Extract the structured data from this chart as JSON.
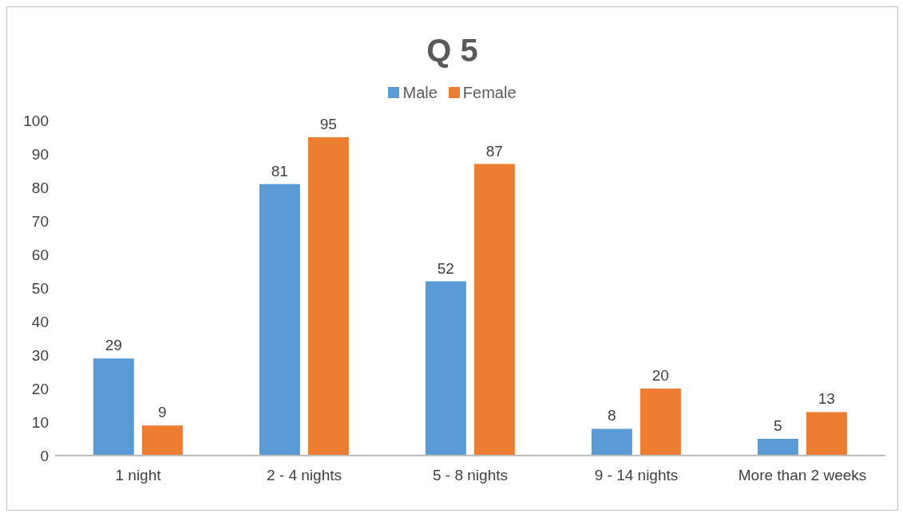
{
  "chart_data": {
    "type": "bar",
    "title": "Q 5",
    "categories": [
      "1 night",
      "2 - 4 nights",
      "5 - 8 nights",
      "9 - 14 nights",
      "More than 2 weeks"
    ],
    "series": [
      {
        "name": "Male",
        "color": "#5b9bd5",
        "values": [
          29,
          81,
          52,
          8,
          5
        ]
      },
      {
        "name": "Female",
        "color": "#ed7d31",
        "values": [
          9,
          95,
          87,
          20,
          13
        ]
      }
    ],
    "ylim": [
      0,
      100
    ],
    "yticks": [
      0,
      10,
      20,
      30,
      40,
      50,
      60,
      70,
      80,
      90,
      100
    ],
    "grid": false,
    "legend": "top",
    "data_labels": true
  }
}
